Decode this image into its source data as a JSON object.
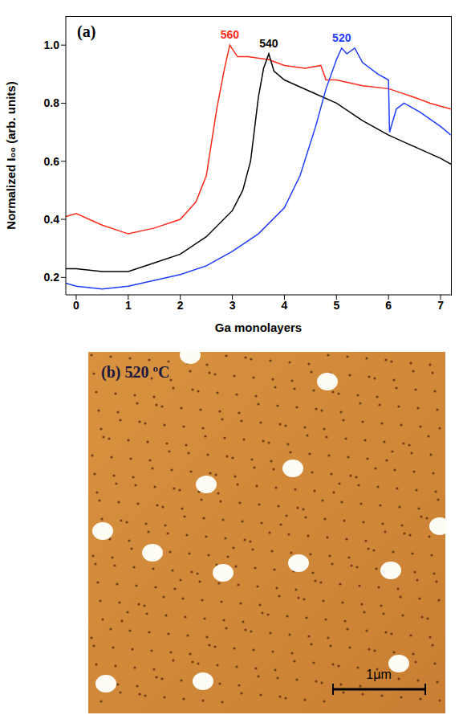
{
  "chart_data": {
    "type": "line",
    "title": "(a)",
    "x_label": "Ga monolayers",
    "y_label": "Normalized I₀₀ (arb. units)",
    "xlim": [
      -0.2,
      7.2
    ],
    "xticks": [
      0,
      1,
      2,
      3,
      4,
      5,
      6,
      7
    ],
    "ylim": [
      0.14,
      1.1
    ],
    "yticks": [
      0.2,
      0.4,
      0.6,
      0.8,
      {
        "value": 1,
        "label": "1.0"
      }
    ],
    "grid": false,
    "series": [
      {
        "name": "560",
        "color": "#ff2a1a",
        "x": [
          -0.2,
          0,
          0.5,
          1,
          1.5,
          2,
          2.3,
          2.5,
          2.7,
          2.85,
          2.95,
          3.1,
          3.3,
          3.7,
          4,
          4.4,
          4.7,
          4.8,
          5,
          5.5,
          6,
          6.5,
          6.8,
          7.2
        ],
        "values": [
          0.41,
          0.42,
          0.38,
          0.35,
          0.37,
          0.4,
          0.46,
          0.55,
          0.78,
          0.92,
          1.0,
          0.96,
          0.96,
          0.95,
          0.93,
          0.92,
          0.93,
          0.88,
          0.88,
          0.86,
          0.85,
          0.82,
          0.8,
          0.78
        ]
      },
      {
        "name": "540",
        "color": "#000000",
        "x": [
          -0.2,
          0,
          0.5,
          1,
          1.5,
          2,
          2.5,
          3,
          3.2,
          3.35,
          3.5,
          3.6,
          3.7,
          3.8,
          4,
          4.5,
          5,
          5.5,
          6,
          6.5,
          7,
          7.2
        ],
        "values": [
          0.23,
          0.23,
          0.22,
          0.22,
          0.25,
          0.28,
          0.34,
          0.43,
          0.5,
          0.6,
          0.82,
          0.92,
          0.97,
          0.91,
          0.88,
          0.84,
          0.8,
          0.74,
          0.69,
          0.65,
          0.61,
          0.59
        ]
      },
      {
        "name": "520",
        "color": "#1f3cff",
        "x": [
          -0.2,
          0,
          0.5,
          1,
          1.5,
          2,
          2.5,
          3,
          3.5,
          4,
          4.3,
          4.6,
          4.8,
          5,
          5.1,
          5.2,
          5.35,
          5.5,
          5.8,
          6,
          6.02,
          6.15,
          6.3,
          6.6,
          7,
          7.2
        ],
        "values": [
          0.18,
          0.17,
          0.16,
          0.17,
          0.19,
          0.21,
          0.24,
          0.29,
          0.35,
          0.44,
          0.55,
          0.72,
          0.85,
          0.95,
          0.99,
          0.97,
          0.99,
          0.94,
          0.9,
          0.88,
          0.7,
          0.78,
          0.8,
          0.77,
          0.72,
          0.69
        ]
      }
    ]
  },
  "image_panel": {
    "label": "(b)",
    "title": "520 ºC",
    "scale_bar": "1μm"
  }
}
